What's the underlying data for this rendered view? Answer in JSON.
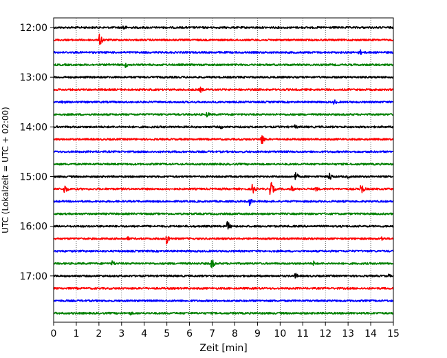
{
  "chart_data": {
    "type": "line",
    "title": "",
    "xlabel": "Zeit  [min]",
    "ylabel": "UTC (Lokalzeit = UTC + 02:00)",
    "xlim": [
      0,
      15
    ],
    "x_ticks": [
      "0",
      "1",
      "2",
      "3",
      "4",
      "5",
      "6",
      "7",
      "8",
      "9",
      "10",
      "11",
      "12",
      "13",
      "14",
      "15"
    ],
    "y_tick_labels": [
      "12:00",
      "13:00",
      "14:00",
      "15:00",
      "16:00",
      "17:00"
    ],
    "grid": "vertical dotted",
    "color_cycle": [
      "#000000",
      "#ff0000",
      "#0000ff",
      "#008000"
    ],
    "series": [
      {
        "start": "12:00",
        "color": "black",
        "events": [
          {
            "x": 3.1,
            "amp": 5
          }
        ]
      },
      {
        "start": "12:15",
        "color": "red",
        "events": [
          {
            "x": 2.05,
            "amp": 9
          }
        ]
      },
      {
        "start": "12:30",
        "color": "blue",
        "events": [
          {
            "x": 13.5,
            "amp": 6
          }
        ]
      },
      {
        "start": "12:45",
        "color": "green",
        "events": [
          {
            "x": 3.2,
            "amp": 4
          }
        ]
      },
      {
        "start": "13:00",
        "color": "black",
        "events": []
      },
      {
        "start": "13:15",
        "color": "red",
        "events": [
          {
            "x": 6.5,
            "amp": 4
          }
        ]
      },
      {
        "start": "13:30",
        "color": "blue",
        "events": [
          {
            "x": 0.4,
            "amp": 4
          },
          {
            "x": 12.4,
            "amp": 4
          }
        ]
      },
      {
        "start": "13:45",
        "color": "green",
        "events": [
          {
            "x": 6.8,
            "amp": 4
          }
        ]
      },
      {
        "start": "14:00",
        "color": "black",
        "events": [
          {
            "x": 7.4,
            "amp": 3
          },
          {
            "x": 10.7,
            "amp": 3
          }
        ]
      },
      {
        "start": "14:15",
        "color": "red",
        "events": [
          {
            "x": 9.2,
            "amp": 8
          }
        ]
      },
      {
        "start": "14:30",
        "color": "blue",
        "events": []
      },
      {
        "start": "14:45",
        "color": "green",
        "events": []
      },
      {
        "start": "15:00",
        "color": "black",
        "events": [
          {
            "x": 10.7,
            "amp": 6
          },
          {
            "x": 12.2,
            "amp": 6
          },
          {
            "x": 13.0,
            "amp": 3
          }
        ]
      },
      {
        "start": "15:15",
        "color": "red",
        "events": [
          {
            "x": 0.5,
            "amp": 7
          },
          {
            "x": 8.8,
            "amp": 8
          },
          {
            "x": 9.6,
            "amp": 11
          },
          {
            "x": 10.5,
            "amp": 5
          },
          {
            "x": 11.6,
            "amp": 4
          },
          {
            "x": 13.6,
            "amp": 8
          }
        ]
      },
      {
        "start": "15:30",
        "color": "blue",
        "events": [
          {
            "x": 8.65,
            "amp": 7
          }
        ]
      },
      {
        "start": "15:45",
        "color": "green",
        "events": []
      },
      {
        "start": "16:00",
        "color": "black",
        "events": [
          {
            "x": 7.7,
            "amp": 7
          }
        ]
      },
      {
        "start": "16:15",
        "color": "red",
        "events": [
          {
            "x": 5.0,
            "amp": 9
          },
          {
            "x": 3.3,
            "amp": 3
          },
          {
            "x": 14.5,
            "amp": 4
          }
        ]
      },
      {
        "start": "16:30",
        "color": "blue",
        "events": []
      },
      {
        "start": "16:45",
        "color": "green",
        "events": [
          {
            "x": 2.6,
            "amp": 5
          },
          {
            "x": 7.0,
            "amp": 7
          },
          {
            "x": 11.5,
            "amp": 4
          }
        ]
      },
      {
        "start": "17:00",
        "color": "black",
        "events": [
          {
            "x": 10.7,
            "amp": 4
          },
          {
            "x": 14.8,
            "amp": 3
          }
        ]
      },
      {
        "start": "17:15",
        "color": "red",
        "events": []
      },
      {
        "start": "17:30",
        "color": "blue",
        "events": []
      },
      {
        "start": "17:45",
        "color": "green",
        "events": [
          {
            "x": 3.4,
            "amp": 3
          }
        ]
      }
    ]
  }
}
